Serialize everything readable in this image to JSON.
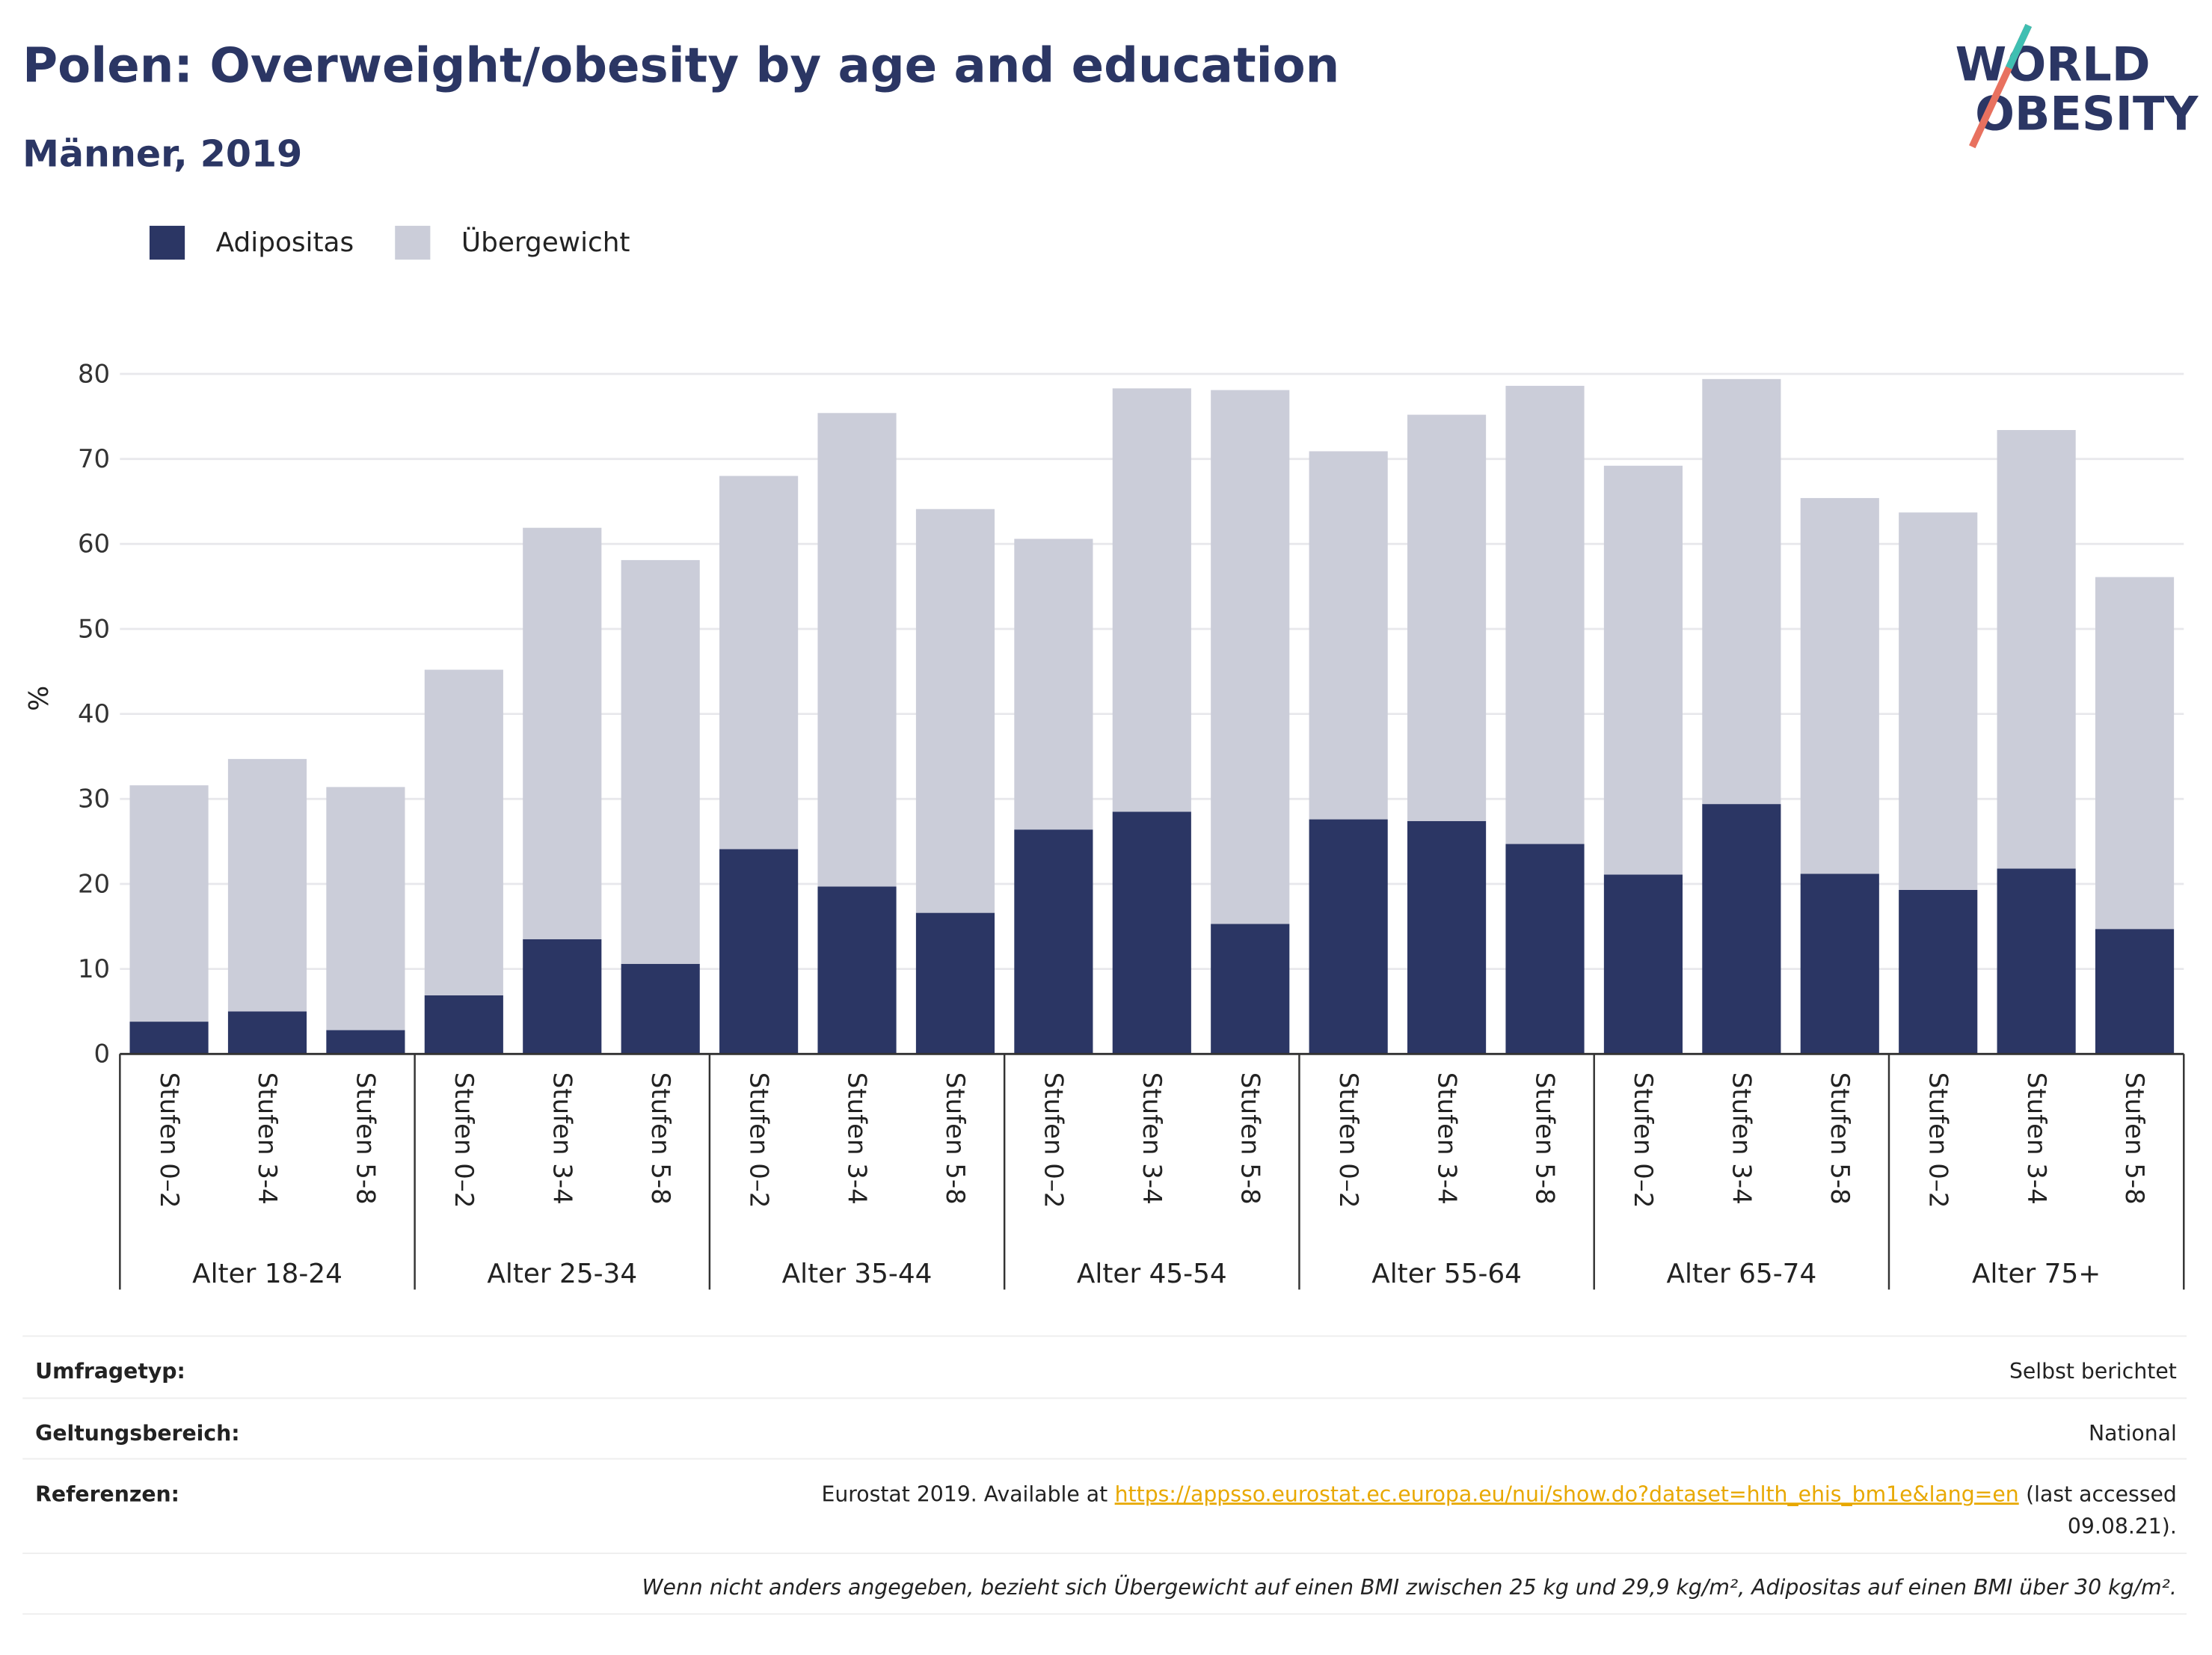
{
  "chart_data": {
    "type": "stacked_bar",
    "title": "Polen: Overweight/obesity by age and education",
    "subtitle": "Männer, 2019",
    "logo": [
      "WORLD",
      "OBESITY"
    ],
    "y_label": "%",
    "categories": [
      "Stufen 0–2",
      "Stufen 3-4",
      "Stufen 5-8",
      "Stufen 0–2",
      "Stufen 3-4",
      "Stufen 5-8",
      "Stufen 0–2",
      "Stufen 3-4",
      "Stufen 5-8",
      "Stufen 0–2",
      "Stufen 3-4",
      "Stufen 5-8",
      "Stufen 0–2",
      "Stufen 3-4",
      "Stufen 5-8",
      "Stufen 0–2",
      "Stufen 3-4",
      "Stufen 5-8",
      "Stufen 0–2",
      "Stufen 3-4",
      "Stufen 5-8"
    ],
    "groups": [
      "Alter 18-24",
      "Alter 25-34",
      "Alter 35-44",
      "Alter 45-54",
      "Alter 55-64",
      "Alter 65-74",
      "Alter 75+"
    ],
    "series": [
      {
        "name": "Adipositas",
        "color": "#2b3664",
        "values": [
          3.8,
          5.0,
          2.8,
          6.9,
          13.5,
          10.6,
          24.1,
          19.7,
          16.6,
          26.4,
          28.5,
          15.3,
          27.6,
          27.4,
          24.7,
          21.1,
          29.4,
          21.2,
          19.3,
          21.8,
          14.7
        ]
      },
      {
        "name": "Übergewicht",
        "color": "#cbcdd9",
        "values": [
          27.8,
          29.7,
          28.6,
          38.3,
          48.4,
          47.5,
          43.9,
          55.7,
          47.5,
          34.2,
          49.8,
          62.8,
          43.3,
          47.8,
          53.9,
          48.1,
          50.0,
          44.2,
          44.4,
          51.6,
          41.4
        ]
      }
    ],
    "ylim": [
      0,
      80
    ],
    "yticks": [
      0,
      10,
      20,
      30,
      40,
      50,
      60,
      70,
      80
    ],
    "grid": true
  },
  "info": {
    "survey_label": "Umfragetyp:",
    "survey": "Selbst berichtet",
    "scope_label": "Geltungsbereich:",
    "scope": "National",
    "ref_label": "Referenzen:",
    "ref_text": "Eurostat 2019. Available at",
    "ref_link": "https://appsso.eurostat.ec.europa.eu/nui/show.do?dataset=hlth_ehis_bm1e&lang=en",
    "ref_after": [
      "(last accessed",
      "09.08.21)."
    ],
    "note": "Wenn nicht anders angegeben, bezieht sich Übergewicht auf einen BMI zwischen 25 kg und 29,9 kg/m², Adipositas auf einen BMI über 30 kg/m²."
  }
}
